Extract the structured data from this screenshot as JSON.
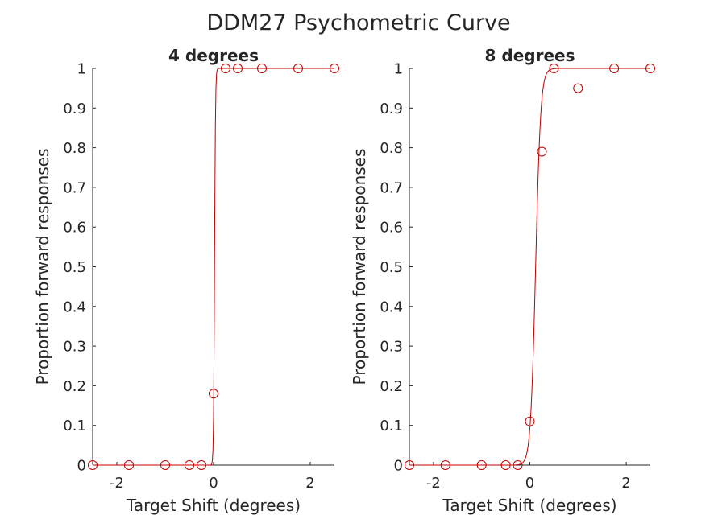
{
  "figure": {
    "title": "DDM27 Psychometric Curve",
    "colors": {
      "data": "#c00000",
      "fit": "#c00000",
      "axis": "#262626",
      "text": "#262626",
      "background": "#ffffff"
    }
  },
  "chart_data": [
    {
      "type": "scatter",
      "title": "4 degrees",
      "xlabel": "Target Shift (degrees)",
      "ylabel": "Proportion forward responses",
      "xlim": [
        -2.5,
        2.5
      ],
      "ylim": [
        0,
        1
      ],
      "xticks": [
        -2,
        0,
        2
      ],
      "xtick_labels": [
        "-2",
        "0",
        "2"
      ],
      "yticks": [
        0,
        0.1,
        0.2,
        0.3,
        0.4,
        0.5,
        0.6,
        0.7,
        0.8,
        0.9,
        1
      ],
      "ytick_labels": [
        "0",
        "0.1",
        "0.2",
        "0.3",
        "0.4",
        "0.5",
        "0.6",
        "0.7",
        "0.8",
        "0.9",
        "1"
      ],
      "grid": false,
      "series": [
        {
          "kind": "markers",
          "marker": "open-circle",
          "x": [
            -2.5,
            -1.75,
            -1,
            -0.5,
            -0.25,
            0,
            0.25,
            0.5,
            1,
            1.75,
            2.5
          ],
          "y": [
            0,
            0,
            0,
            0,
            0,
            0.18,
            1,
            1,
            1,
            1,
            1
          ]
        },
        {
          "kind": "fit-line",
          "function": "logistic",
          "midpoint": 0.02,
          "slope": 100
        }
      ]
    },
    {
      "type": "scatter",
      "title": "8 degrees",
      "xlabel": "Target Shift (degrees)",
      "ylabel": "Proportion forward responses",
      "xlim": [
        -2.5,
        2.5
      ],
      "ylim": [
        0,
        1
      ],
      "xticks": [
        -2,
        0,
        2
      ],
      "xtick_labels": [
        "-2",
        "0",
        "2"
      ],
      "yticks": [
        0,
        0.1,
        0.2,
        0.3,
        0.4,
        0.5,
        0.6,
        0.7,
        0.8,
        0.9,
        1
      ],
      "ytick_labels": [
        "0",
        "0.1",
        "0.2",
        "0.3",
        "0.4",
        "0.5",
        "0.6",
        "0.7",
        "0.8",
        "0.9",
        "1"
      ],
      "grid": false,
      "series": [
        {
          "kind": "markers",
          "marker": "open-circle",
          "x": [
            -2.5,
            -1.75,
            -1,
            -0.5,
            -0.25,
            0,
            0.25,
            0.5,
            1,
            1.75,
            2.5
          ],
          "y": [
            0,
            0,
            0,
            0,
            0,
            0.11,
            0.79,
            1,
            0.95,
            1,
            1
          ]
        },
        {
          "kind": "fit-line",
          "function": "logistic",
          "midpoint": 0.12,
          "slope": 19
        }
      ]
    }
  ]
}
